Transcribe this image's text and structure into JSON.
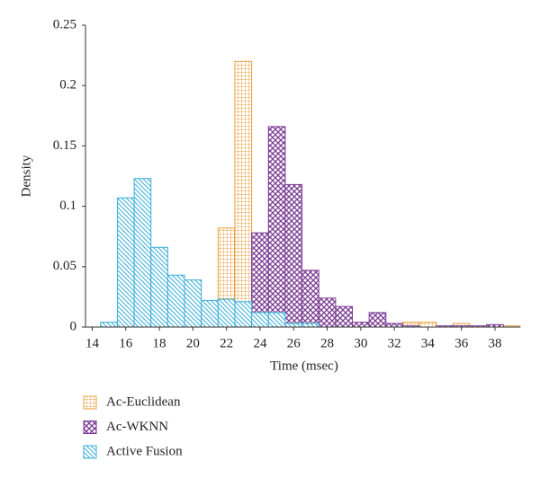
{
  "chart_data": {
    "type": "histogram",
    "xlabel": "Time (msec)",
    "ylabel": "Density",
    "bins": [
      14.5,
      15.5,
      16.5,
      17.5,
      18.5,
      19.5,
      20.5,
      21.5,
      22.5,
      23.5,
      24.5,
      25.5,
      26.5,
      27.5,
      28.5,
      29.5,
      30.5,
      31.5,
      32.5,
      33.5,
      34.5,
      35.5,
      36.5,
      37.5,
      38.5,
      39.5
    ],
    "series": [
      {
        "name": "Ac-Euclidean",
        "color": "#e8a040",
        "pattern": "grid",
        "values": [
          0,
          0,
          0,
          0,
          0,
          0,
          0,
          0.082,
          0.22,
          0,
          0,
          0,
          0,
          0,
          0,
          0,
          0,
          0,
          0.004,
          0.004,
          0,
          0.003,
          0,
          0,
          0.001
        ]
      },
      {
        "name": "Ac-WKNN",
        "color": "#7b3b93",
        "pattern": "crosshatch",
        "values": [
          0,
          0,
          0,
          0,
          0,
          0,
          0,
          0,
          0,
          0.078,
          0.166,
          0.118,
          0.047,
          0.024,
          0.017,
          0.004,
          0.012,
          0.003,
          0.001,
          0,
          0.001,
          0.001,
          0.001,
          0.002,
          0
        ]
      },
      {
        "name": "Active Fusion",
        "color": "#3aaed8",
        "pattern": "diagonal",
        "values": [
          0.004,
          0.107,
          0.123,
          0.066,
          0.043,
          0.039,
          0.022,
          0.023,
          0.021,
          0.012,
          0.012,
          0.003,
          0.003,
          0,
          0,
          0,
          0,
          0,
          0,
          0,
          0,
          0,
          0,
          0,
          0
        ]
      }
    ],
    "xlim": [
      13.6,
      39.5
    ],
    "xticks": [
      14,
      16,
      18,
      20,
      22,
      24,
      26,
      28,
      30,
      32,
      34,
      36,
      38
    ],
    "ylim": [
      0,
      0.25
    ],
    "yticks": [
      0,
      0.05,
      0.1,
      0.15,
      0.2,
      0.25
    ],
    "legend": "below"
  }
}
